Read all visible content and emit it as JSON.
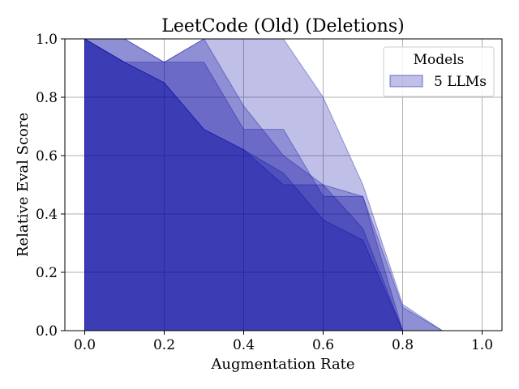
{
  "chart_data": {
    "type": "area",
    "title": "LeetCode (Old) (Deletions)",
    "xlabel": "Augmentation Rate",
    "ylabel": "Relative Eval Score",
    "xlim": [
      -0.05,
      1.05
    ],
    "ylim": [
      0,
      1
    ],
    "xticks": [
      "0.0",
      "0.2",
      "0.4",
      "0.6",
      "0.8",
      "1.0"
    ],
    "yticks": [
      "0.0",
      "0.2",
      "0.4",
      "0.6",
      "0.8",
      "1.0"
    ],
    "grid": true,
    "legend": {
      "title": "Models",
      "position": "top-right",
      "entries": [
        "5 LLMs"
      ]
    },
    "x": [
      0.0,
      0.1,
      0.2,
      0.3,
      0.4,
      0.5,
      0.6,
      0.7,
      0.8,
      0.9,
      1.0
    ],
    "series": [
      {
        "values": [
          1.0,
          1.0,
          0.92,
          1.0,
          1.0,
          1.0,
          0.8,
          0.5,
          0.09,
          0.0,
          0.0
        ]
      },
      {
        "values": [
          1.0,
          1.0,
          0.92,
          1.0,
          0.77,
          0.6,
          0.5,
          0.46,
          0.08,
          0.0,
          0.0
        ]
      },
      {
        "values": [
          1.0,
          0.92,
          0.92,
          0.92,
          0.69,
          0.69,
          0.46,
          0.46,
          0.0,
          0.0,
          0.0
        ]
      },
      {
        "values": [
          1.0,
          0.92,
          0.85,
          0.69,
          0.62,
          0.54,
          0.38,
          0.31,
          0.0,
          0.0,
          0.0
        ]
      },
      {
        "values": [
          1.0,
          0.92,
          0.85,
          0.69,
          0.62,
          0.5,
          0.5,
          0.35,
          0.0,
          0.0,
          0.0
        ]
      }
    ],
    "colors": {
      "fill": "#0000a0",
      "fill_opacity": 0.25,
      "edge": "#0000a0",
      "grid": "#b0b0b0"
    }
  }
}
